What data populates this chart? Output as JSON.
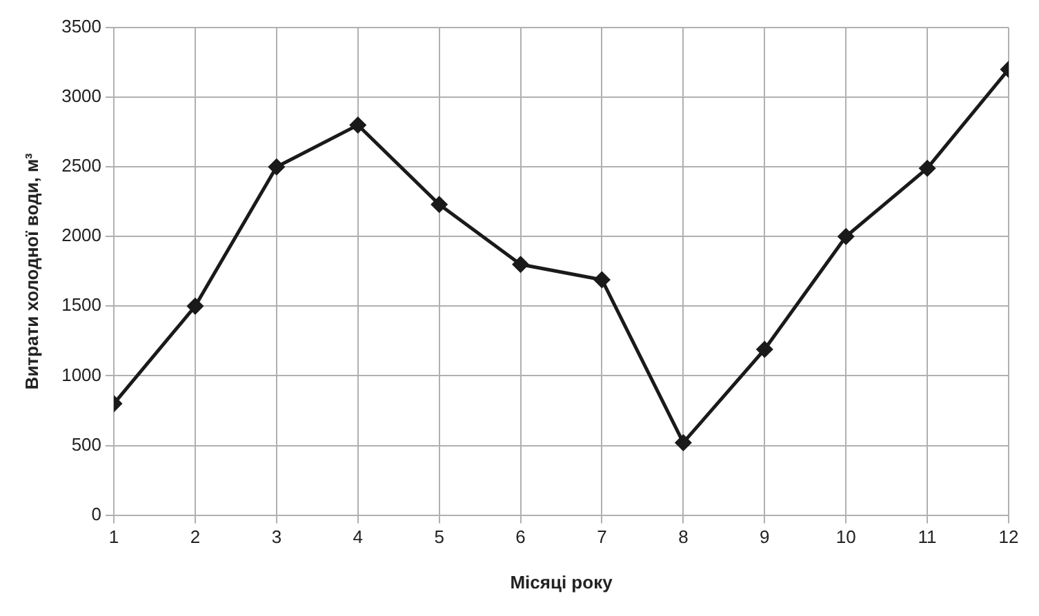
{
  "chart_data": {
    "type": "line",
    "xlabel": "Місяці року",
    "ylabel": "Витрати холодної води, м³",
    "x": [
      1,
      2,
      3,
      4,
      5,
      6,
      7,
      8,
      9,
      10,
      11,
      12
    ],
    "series": [
      {
        "color": "#1a1a1a",
        "values": [
          800,
          1500,
          2500,
          2800,
          2230,
          1800,
          1690,
          520,
          1190,
          2000,
          2490,
          3200
        ]
      }
    ],
    "xlim": [
      1,
      12
    ],
    "xticks": [
      1,
      2,
      3,
      4,
      5,
      6,
      7,
      8,
      9,
      10,
      11,
      12
    ],
    "ylim": [
      0,
      3500
    ],
    "yticks": [
      0,
      500,
      1000,
      1500,
      2000,
      2500,
      3000,
      3500
    ],
    "grid": true,
    "marker": "diamond",
    "line_style": "solid",
    "legend": false
  }
}
